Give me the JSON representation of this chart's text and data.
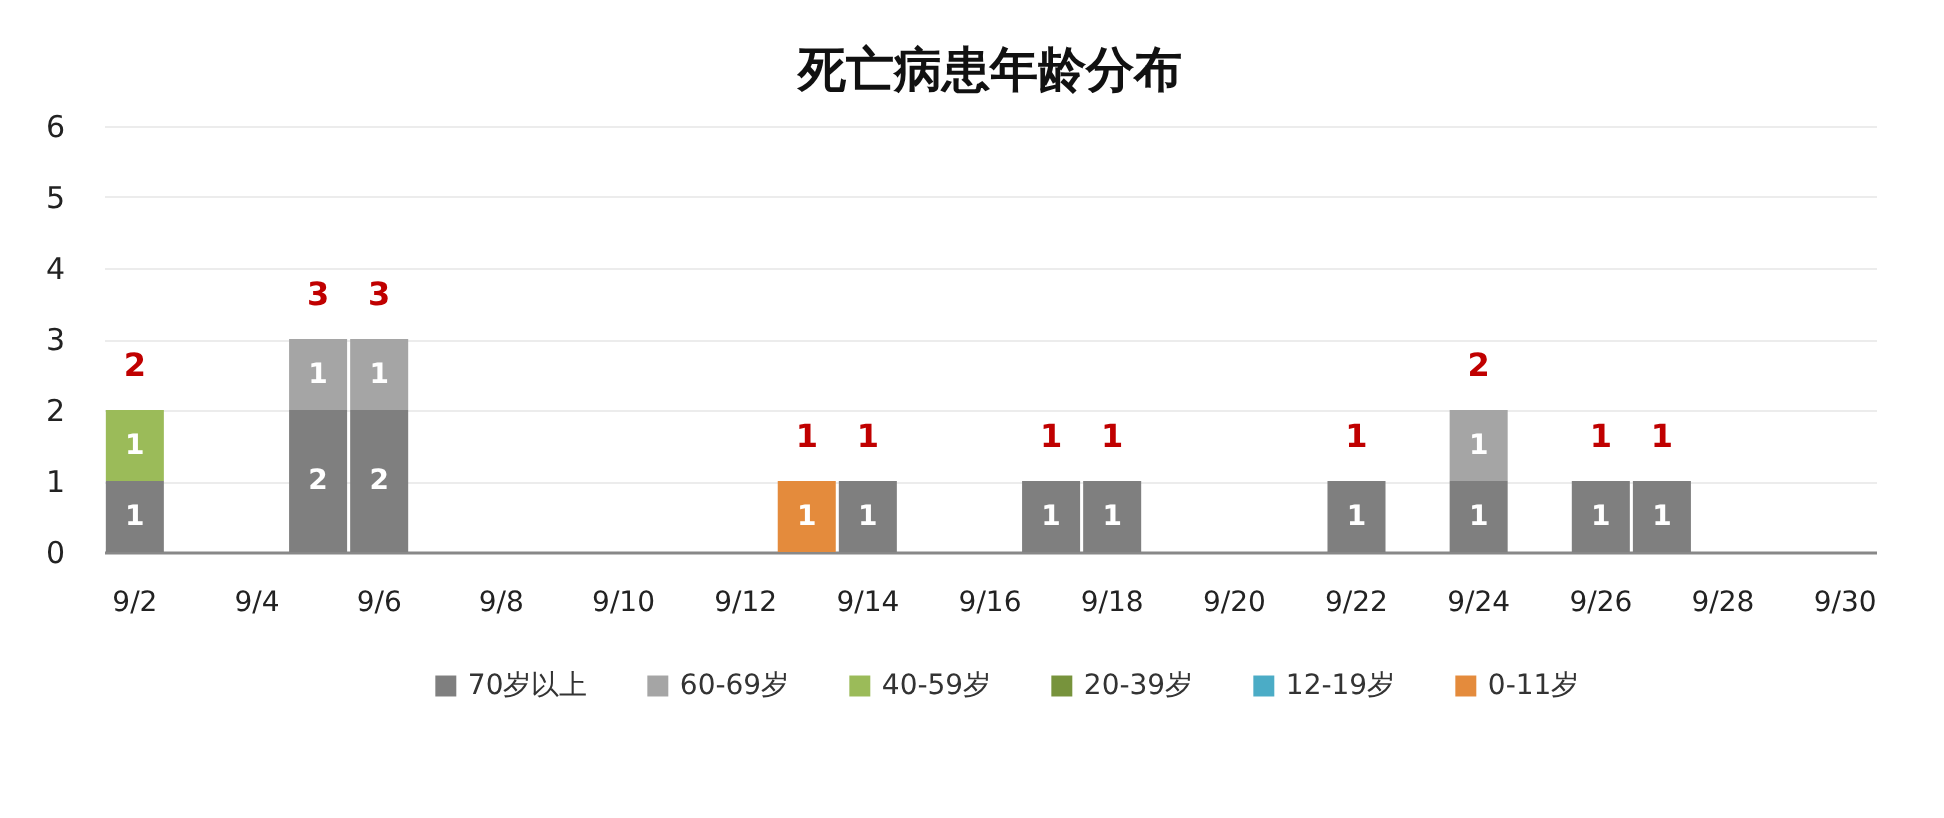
{
  "chart_data": {
    "type": "bar",
    "title": "死亡病患年龄分布",
    "categories": [
      "9/2",
      null,
      "9/4",
      null,
      "9/6",
      null,
      "9/8",
      null,
      "9/10",
      null,
      "9/12",
      null,
      "9/14",
      null,
      "9/16",
      null,
      "9/18",
      null,
      "9/20",
      null,
      "9/22",
      null,
      "9/24",
      null,
      "9/26",
      null,
      "9/28",
      null,
      "9/30"
    ],
    "series": [
      {
        "name": "70岁以上",
        "color": "#7f7f7f",
        "values": [
          1,
          null,
          null,
          2,
          2,
          null,
          null,
          null,
          null,
          null,
          null,
          null,
          1,
          null,
          null,
          1,
          1,
          null,
          null,
          null,
          1,
          null,
          1,
          null,
          1,
          1,
          null,
          null,
          null
        ]
      },
      {
        "name": "60-69岁",
        "color": "#a5a5a5",
        "values": [
          null,
          null,
          null,
          1,
          1,
          null,
          null,
          null,
          null,
          null,
          null,
          null,
          null,
          null,
          null,
          null,
          null,
          null,
          null,
          null,
          null,
          null,
          1,
          null,
          null,
          null,
          null,
          null,
          null
        ]
      },
      {
        "name": "40-59岁",
        "color": "#9bbb59",
        "values": [
          1,
          null,
          null,
          null,
          null,
          null,
          null,
          null,
          null,
          null,
          null,
          null,
          null,
          null,
          null,
          null,
          null,
          null,
          null,
          null,
          null,
          null,
          null,
          null,
          null,
          null,
          null,
          null,
          null
        ]
      },
      {
        "name": "20-39岁",
        "color": "#77933c",
        "values": [
          null,
          null,
          null,
          null,
          null,
          null,
          null,
          null,
          null,
          null,
          null,
          null,
          null,
          null,
          null,
          null,
          null,
          null,
          null,
          null,
          null,
          null,
          null,
          null,
          null,
          null,
          null,
          null,
          null
        ]
      },
      {
        "name": "12-19岁",
        "color": "#4bacc6",
        "values": [
          null,
          null,
          null,
          null,
          null,
          null,
          null,
          null,
          null,
          null,
          null,
          null,
          null,
          null,
          null,
          null,
          null,
          null,
          null,
          null,
          null,
          null,
          null,
          null,
          null,
          null,
          null,
          null,
          null
        ]
      },
      {
        "name": "0-11岁",
        "color": "#e48b3c",
        "values": [
          null,
          null,
          null,
          null,
          null,
          null,
          null,
          null,
          null,
          null,
          null,
          1,
          null,
          null,
          null,
          null,
          null,
          null,
          null,
          null,
          null,
          null,
          null,
          null,
          null,
          null,
          null,
          null,
          null
        ]
      }
    ],
    "stacked": true,
    "data_labels": true,
    "totals": [
      "2",
      null,
      null,
      "3",
      "3",
      null,
      null,
      null,
      null,
      null,
      null,
      "1",
      "1",
      null,
      null,
      "1",
      "1",
      null,
      null,
      null,
      "1",
      null,
      "2",
      null,
      "1",
      "1",
      null,
      null,
      null
    ],
    "ylim": [
      0,
      6
    ],
    "yticks": [
      0,
      1,
      2,
      3,
      4,
      5,
      6
    ],
    "grid": "y",
    "legend": "bottom"
  }
}
